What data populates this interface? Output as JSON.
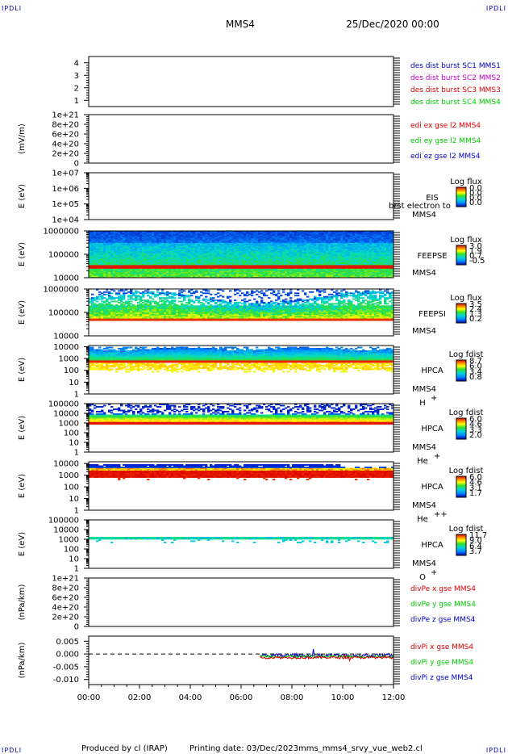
{
  "header": {
    "corner_tl": "IPDLI",
    "corner_tr": "IPDLI",
    "corner_bl": "IPDLI",
    "corner_br": "IPDLI",
    "mission": "MMS4",
    "date": "25/Dec/2020 00:00"
  },
  "footer": {
    "produced_by": "Produced by cl (IRAP)",
    "printing_date": "Printing date: 03/Dec/2023",
    "script_name": "mms_mms4_srvy_vue_web2.cl"
  },
  "colors": {
    "blue": "#0000cc",
    "magenta": "#cc00cc",
    "red": "#dd0000",
    "green": "#00cc00"
  },
  "chart_data": {
    "type": "line",
    "x_ticks": [
      "00:00",
      "02:00",
      "04:00",
      "06:00",
      "08:00",
      "10:00",
      "12:00"
    ],
    "x_range_hours": [
      0,
      12
    ],
    "panels": [
      {
        "id": "burst",
        "kind": "lines",
        "ylabel": "",
        "yticks": [
          "1",
          "2",
          "3",
          "4"
        ],
        "ylim": [
          0.5,
          4.5
        ],
        "right_labels": [
          {
            "text": "des dist burst SC1 MMS1",
            "color": "#0000cc"
          },
          {
            "text": "des dist burst SC2 MMS2",
            "color": "#cc00cc"
          },
          {
            "text": "des dist burst SC3 MMS3",
            "color": "#dd0000"
          },
          {
            "text": "des dist burst SC4 MMS4",
            "color": "#00cc00"
          }
        ]
      },
      {
        "id": "edi",
        "kind": "lines",
        "ylabel": "(mV/m)",
        "yticks": [
          "0",
          "2e+20",
          "4e+20",
          "6e+20",
          "8e+20",
          "1e+21"
        ],
        "ylim": [
          0,
          1e+21
        ],
        "zero_line": true,
        "right_labels": [
          {
            "text": "edi ex gse l2 MMS4",
            "color": "#dd0000"
          },
          {
            "text": "edi ey gse l2 MMS4",
            "color": "#00cc00"
          },
          {
            "text": "edi ez gse l2 MMS4",
            "color": "#0000cc"
          }
        ]
      },
      {
        "id": "eis",
        "kind": "spectrogram",
        "ylabel": "E (eV)",
        "yticks": [
          "1e+04",
          "1e+05",
          "1e+06",
          "1e+07"
        ],
        "ylog": [
          4,
          7
        ],
        "instrument": "EIS",
        "instrument2": "MMS4",
        "overlap_text": "brst electron to",
        "cb_title": "Log flux",
        "cb_ticks": [
          "0.0",
          "0.0",
          "0.0",
          "0.0"
        ],
        "data_log_range": null
      },
      {
        "id": "feepse",
        "kind": "spectrogram",
        "ylabel": "E (eV)",
        "yticks": [
          "10000",
          "100000",
          "1000000"
        ],
        "ylog": [
          4,
          6
        ],
        "instrument": "FEEPSE",
        "instrument2": "MMS4",
        "cb_title": "Log flux",
        "cb_ticks": [
          "3.0",
          "1.9",
          "0.7",
          "-0.5"
        ],
        "data_log_range": [
          4.35,
          6.05
        ],
        "band_log": 4.48,
        "pattern": "feepse"
      },
      {
        "id": "feepsi",
        "kind": "spectrogram",
        "ylabel": "E (eV)",
        "yticks": [
          "10000",
          "100000",
          "1000000"
        ],
        "ylog": [
          4,
          6
        ],
        "instrument": "FEEPSI",
        "instrument2": "MMS4",
        "cb_title": "Log flux",
        "cb_ticks": [
          "3.5",
          "2.4",
          "1.3",
          "0.2"
        ],
        "data_log_range": [
          4.7,
          5.9
        ],
        "band_log": 4.72,
        "pattern": "feepsi"
      },
      {
        "id": "hpca_h",
        "kind": "spectrogram",
        "ylabel": "E (eV)",
        "yticks": [
          "1",
          "10",
          "100",
          "1000",
          "10000"
        ],
        "ylog": [
          0,
          4.1
        ],
        "instrument": "HPCA",
        "instrument2": "MMS4",
        "species": "H",
        "species_sup": "+",
        "cb_title": "Log fdist",
        "cb_ticks": [
          "8.7",
          "6.0",
          "3.4",
          "0.8"
        ],
        "data_log_range": [
          1.9,
          4.0
        ],
        "band_log": 2.75,
        "pattern": "hpca_h"
      },
      {
        "id": "hpca_he",
        "kind": "spectrogram",
        "ylabel": "E (eV)",
        "yticks": [
          "1",
          "10",
          "100",
          "1000",
          "10000",
          "100000"
        ],
        "ylog": [
          0,
          5
        ],
        "instrument": "HPCA",
        "instrument2": "MMS4",
        "species": "He",
        "species_sup": "+",
        "cb_title": "Log fdist",
        "cb_ticks": [
          "6.0",
          "4.6",
          "3.3",
          "2.0"
        ],
        "data_log_range": [
          2.9,
          4.2
        ],
        "band_log": 3.0,
        "pattern": "hpca_he"
      },
      {
        "id": "hpca_hepp",
        "kind": "spectrogram",
        "ylabel": "E (eV)",
        "yticks": [
          "1",
          "10",
          "100",
          "1000",
          "10000"
        ],
        "ylog": [
          0,
          4.15
        ],
        "instrument": "HPCA",
        "instrument2": "MMS4",
        "species": "He",
        "species_sup": "++",
        "cb_title": "Log fdist",
        "cb_ticks": [
          "6.0",
          "4.6",
          "3.1",
          "1.7"
        ],
        "data_log_range": [
          2.85,
          4.0
        ],
        "band_log": 3.1,
        "pattern": "hpca_hepp"
      },
      {
        "id": "hpca_o",
        "kind": "spectrogram",
        "ylabel": "E (eV)",
        "yticks": [
          "1",
          "10",
          "100",
          "1000",
          "10000",
          "100000"
        ],
        "ylog": [
          0,
          5
        ],
        "instrument": "HPCA",
        "instrument2": "MMS4",
        "species": "O",
        "species_sup": "+",
        "cb_title": "Log fdist",
        "cb_ticks": [
          "11.7",
          "9.0",
          "6.4",
          "3.7"
        ],
        "data_log_range": [
          3.0,
          3.3
        ],
        "band_log": 3.1,
        "pattern": "hpca_o"
      },
      {
        "id": "divpe",
        "kind": "lines",
        "ylabel": "(nPa/km)",
        "yticks": [
          "0",
          "2e+20",
          "4e+20",
          "6e+20",
          "8e+20",
          "1e+21"
        ],
        "ylim": [
          0,
          1e+21
        ],
        "zero_line": true,
        "right_labels": [
          {
            "text": "divPe x gse MMS4",
            "color": "#dd0000"
          },
          {
            "text": "divPe y gse MMS4",
            "color": "#00cc00"
          },
          {
            "text": "divPe z gse MMS4",
            "color": "#0000cc"
          }
        ]
      },
      {
        "id": "divpi",
        "kind": "lines",
        "ylabel": "(nPa/km)",
        "yticks": [
          "-0.010",
          "-0.005",
          "0.000",
          "0.005"
        ],
        "ylim": [
          -0.012,
          0.007
        ],
        "zero_line": true,
        "data_start_hour": 6.75,
        "right_labels": [
          {
            "text": "divPi x gse MMS4",
            "color": "#dd0000"
          },
          {
            "text": "divPi y gse MMS4",
            "color": "#00cc00"
          },
          {
            "text": "divPi z gse MMS4",
            "color": "#0000cc"
          }
        ]
      }
    ]
  }
}
